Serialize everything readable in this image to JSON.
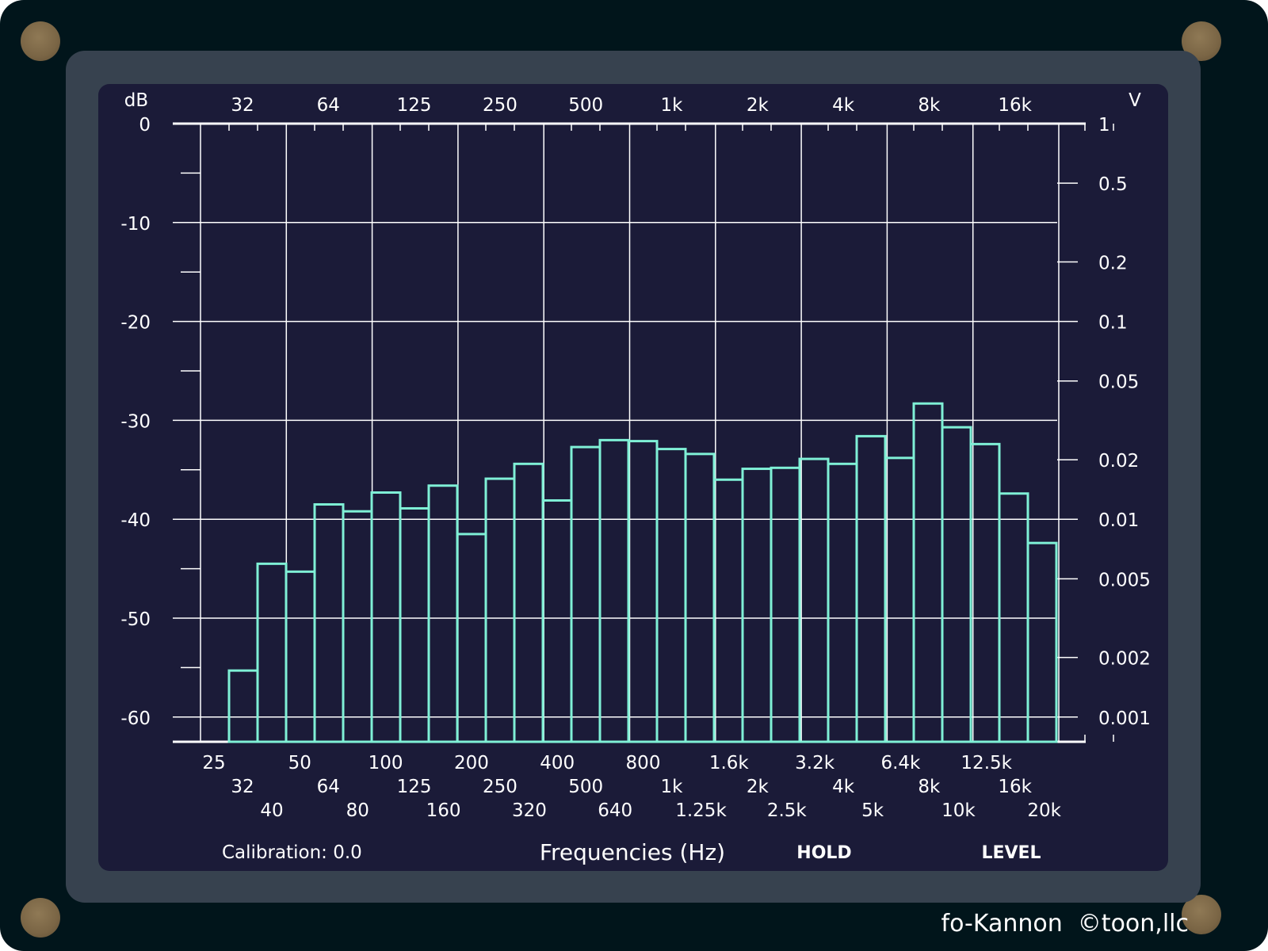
{
  "colors": {
    "device": "#01151b",
    "bezel": "#37424f",
    "screen": "#1b1b38",
    "grid": "#ffffff",
    "bar": "#7ff0d6"
  },
  "brand": "fo-Kannon  ©toon,llc",
  "footer": {
    "calibration": "Calibration: 0.0",
    "hold": "HOLD",
    "level": "LEVEL"
  },
  "chart_data": {
    "type": "bar",
    "xlabel": "Frequencies (Hz)",
    "ylabel": "dB",
    "ylabel_right": "V",
    "ylim": [
      -62.5,
      0
    ],
    "yticks_left": [
      "0",
      "-10",
      "-20",
      "-30",
      "-40",
      "-50",
      "-60"
    ],
    "yticks_left_values": [
      0,
      -10,
      -20,
      -30,
      -40,
      -50,
      -60
    ],
    "yticks_right": [
      "1",
      "0.5",
      "0.2",
      "0.1",
      "0.05",
      "0.02",
      "0.01",
      "0.005",
      "0.002",
      "0.001"
    ],
    "yticks_right_values": [
      1,
      0.5,
      0.2,
      0.1,
      0.05,
      0.02,
      0.01,
      0.005,
      0.002,
      0.001
    ],
    "top_labels": [
      "32",
      "64",
      "125",
      "250",
      "500",
      "1k",
      "2k",
      "4k",
      "8k",
      "16k"
    ],
    "bottom_row1": [
      "25",
      "50",
      "100",
      "200",
      "400",
      "800",
      "1.6k",
      "3.2k",
      "6.4k",
      "12.5k"
    ],
    "bottom_row2": [
      "32",
      "64",
      "125",
      "250",
      "500",
      "1k",
      "2k",
      "4k",
      "8k",
      "16k"
    ],
    "bottom_row3": [
      "40",
      "80",
      "160",
      "320",
      "640",
      "1.25k",
      "2.5k",
      "5k",
      "10k",
      "20k"
    ],
    "grid": true,
    "categories": [
      "32",
      "40",
      "50",
      "64",
      "80",
      "100",
      "125",
      "160",
      "200",
      "250",
      "320",
      "400",
      "500",
      "640",
      "800",
      "1k",
      "1.25k",
      "1.6k",
      "2k",
      "2.5k",
      "3.2k",
      "4k",
      "5k",
      "6.4k",
      "8k",
      "10k",
      "12.5k",
      "16k",
      "20k"
    ],
    "values": [
      -55.3,
      -44.5,
      -45.3,
      -38.5,
      -39.2,
      -37.3,
      -38.9,
      -36.6,
      -41.5,
      -35.9,
      -34.4,
      -38.1,
      -32.7,
      -32.0,
      -32.1,
      -32.9,
      -33.4,
      -36.0,
      -34.9,
      -34.8,
      -33.9,
      -34.4,
      -31.6,
      -33.8,
      -28.3,
      -30.7,
      -32.4,
      -37.4,
      -42.4
    ]
  }
}
